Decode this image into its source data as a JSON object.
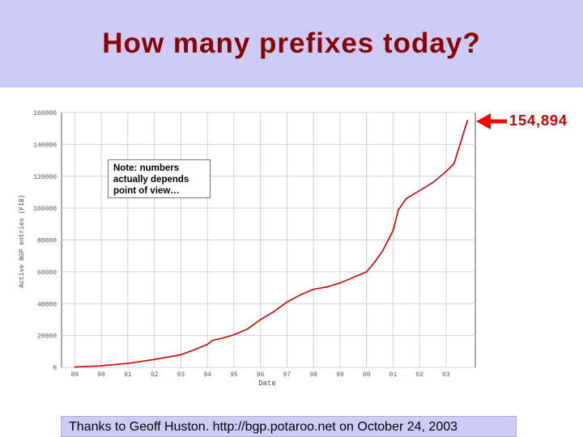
{
  "slide": {
    "title": "How many prefixes today?",
    "callout": "154,894",
    "note_lines": [
      "Note: numbers",
      "actually depends",
      "point of view…"
    ],
    "footer": "Thanks to Geoff Huston. http://bgp.potaroo.net on October 24, 2003"
  },
  "colors": {
    "title_bar": "#ccccf7",
    "title_text": "#8b0000",
    "series": "#cc0000",
    "arrow": "#ff0000"
  },
  "chart_data": {
    "type": "line",
    "title": "",
    "xlabel": "Date",
    "ylabel": "Active BGP entries (FIB)",
    "xlim": [
      1988.5,
      2004.1
    ],
    "ylim": [
      0,
      160000
    ],
    "xticks": [
      "89",
      "90",
      "91",
      "92",
      "93",
      "94",
      "95",
      "96",
      "97",
      "98",
      "99",
      "00",
      "01",
      "02",
      "03"
    ],
    "yticks": [
      0,
      20000,
      40000,
      60000,
      80000,
      100000,
      120000,
      140000,
      160000
    ],
    "ytick_labels": [
      "0",
      "20000",
      "40000",
      "60000",
      "80000",
      "100000",
      "120000",
      "140000",
      "160000"
    ],
    "grid": true,
    "series": [
      {
        "name": "",
        "x": [
          1989.0,
          1990.0,
          1991.0,
          1992.0,
          1993.0,
          1993.5,
          1994.0,
          1994.2,
          1994.6,
          1995.0,
          1995.5,
          1996.0,
          1996.5,
          1997.0,
          1997.5,
          1998.0,
          1998.5,
          1999.0,
          1999.5,
          2000.0,
          2000.3,
          2000.6,
          2001.0,
          2001.2,
          2001.5,
          2002.0,
          2002.5,
          2003.0,
          2003.3,
          2003.8
        ],
        "y": [
          200,
          1000,
          2500,
          5000,
          8000,
          11000,
          14500,
          17000,
          18500,
          20500,
          24000,
          30000,
          35000,
          41000,
          45500,
          49000,
          50500,
          53000,
          56500,
          60000,
          66000,
          73000,
          86000,
          99000,
          106000,
          111000,
          116000,
          123000,
          128000,
          154894
        ]
      }
    ],
    "annotations": [
      "154,894",
      "Note: numbers actually depends point of view…"
    ]
  }
}
